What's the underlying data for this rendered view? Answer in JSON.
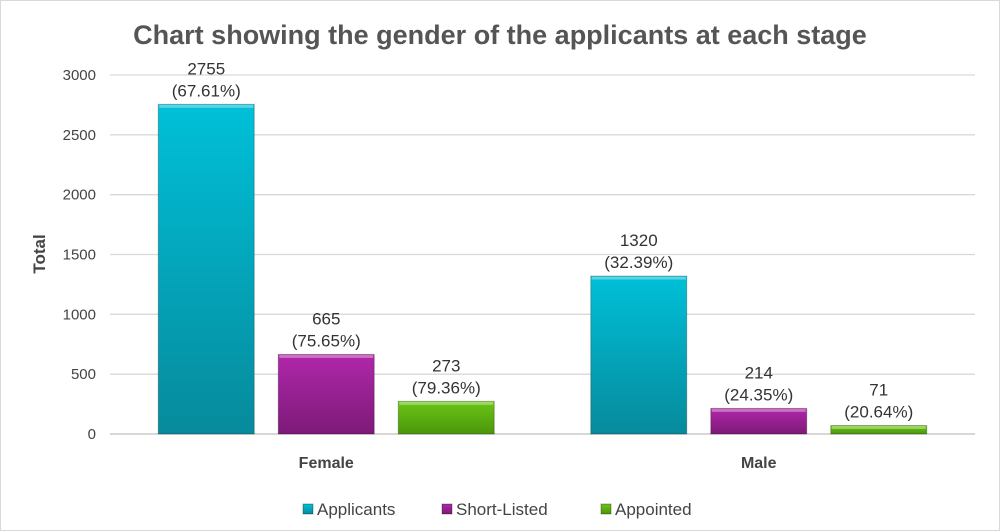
{
  "chart_data": {
    "type": "bar",
    "title": "Chart showing the gender of the applicants at each stage",
    "xlabel": "",
    "ylabel": "Total",
    "ylim": [
      0,
      3000
    ],
    "yticks": [
      "0",
      "500",
      "1000",
      "1500",
      "2000",
      "2500",
      "3000"
    ],
    "grid": true,
    "legend_position": "bottom",
    "categories": [
      "Female",
      "Male"
    ],
    "series": [
      {
        "name": "Applicants",
        "color": "#0fb3c9",
        "values": [
          2755,
          1320
        ],
        "labels": [
          "(67.61%)",
          "(32.39%)"
        ]
      },
      {
        "name": "Short-Listed",
        "color": "#a0219a",
        "values": [
          665,
          214
        ],
        "labels": [
          "(75.65%)",
          "(24.35%)"
        ]
      },
      {
        "name": "Appointed",
        "color": "#66bb10",
        "values": [
          273,
          71
        ],
        "labels": [
          "(79.36%)",
          "(20.64%)"
        ]
      }
    ]
  }
}
